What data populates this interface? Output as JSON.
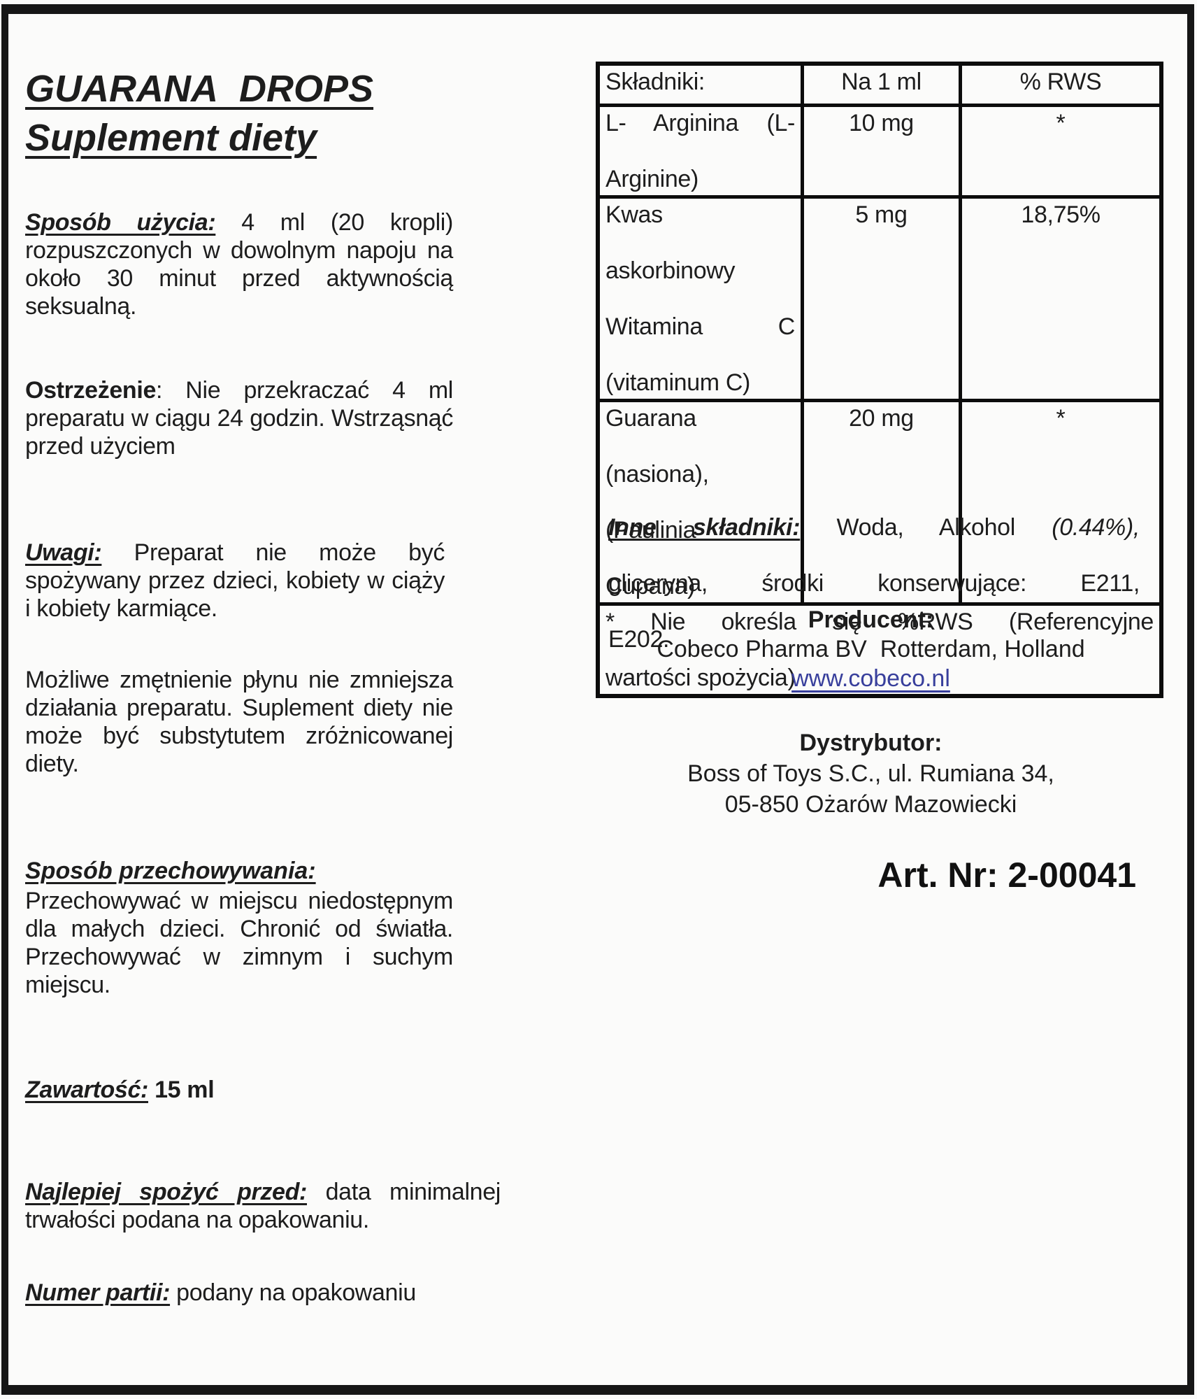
{
  "page": {
    "background": "#fbfbfa",
    "frame_color": "#161616",
    "text_color": "#1d1d1d",
    "link_color": "#383f9c"
  },
  "left": {
    "title_line1": "GUARANA  DROPS",
    "title_line2": "Suplement diety",
    "usage": {
      "lead": "Sposób użycia:",
      "rest": " 4 ml (20 kropli) rozpuszczonych w dowolnym napoju na około 30 minut przed aktywnością seksualną."
    },
    "warning": {
      "lead": "Ostrzeżenie",
      "rest": ": Nie przekraczać 4 ml preparatu w ciągu 24 godzin. Wstrząsnąć przed użyciem"
    },
    "notes": {
      "lead": "Uwagi:",
      "rest": " Preparat nie może być spożywany przez dzieci, kobiety w ciąży i kobiety karmiące."
    },
    "cloudiness": "Możliwe zmętnienie płynu nie zmniejsza działania preparatu. Suplement diety nie może być substytutem zróżnicowanej diety.",
    "storage": {
      "heading": "Sposób przechowywania:",
      "text": "Przechowywać w miejscu niedostępnym dla małych dzieci. Chronić od światła. Przechowywać w zimnym i suchym miejscu."
    },
    "volume": {
      "lead": "Zawartość:",
      "rest": " 15 ml"
    },
    "best_before": {
      "lead": "Najlepiej spożyć przed:",
      "rest": " data minimalnej trwałości podana na opakowaniu."
    },
    "batch": {
      "lead": "Numer partii:",
      "rest": " podany na opakowaniu"
    }
  },
  "table": {
    "col_headers": [
      "Składniki:",
      "Na 1 ml",
      "% RWS"
    ],
    "rows": [
      {
        "ingredient": "L- Arginina (L-Arginine)",
        "ingredient_lines": [
          "L- Arginina (L-",
          "Arginine)"
        ],
        "amount": "10 mg",
        "rws": "*"
      },
      {
        "ingredient": "Kwas askorbinowy Witamina C (vitaminum C)",
        "ingredient_lines": [
          "Kwas",
          "askorbinowy",
          "Witamina C",
          "(vitaminum C)"
        ],
        "amount": "5 mg",
        "rws": "18,75%"
      },
      {
        "ingredient": "Guarana (nasiona), (Paulinia Cupana)",
        "ingredient_lines": [
          "Guarana",
          "(nasiona),",
          "(Paulinia",
          "Cupana)"
        ],
        "amount": "20 mg",
        "rws": "*"
      }
    ],
    "footnote_lines": [
      "* Nie określa się %RWS (Referencyjne",
      "wartości spożycia)"
    ],
    "footnote": "* Nie określa się %RWS (Referencyjne wartości spożycia)"
  },
  "right": {
    "other_ingredients": {
      "lead": "Inne składniki:",
      "line1_rest": " Woda, Alkohol ",
      "line1_pct": "(0.44%),",
      "line2": "gliceryna, środki konserwujące: E211,",
      "line3": "E202."
    },
    "producer_heading": "Producent:",
    "producer_name": "Cobeco Pharma BV  Rotterdam, Holland",
    "producer_url": "www.cobeco.nl",
    "distributor_heading": "Dystrybutor:",
    "distributor_line1": "Boss of Toys S.C., ul. Rumiana 34,",
    "distributor_line2": "05-850 Ożarów Mazowiecki",
    "article_number": "Art. Nr: 2-00041"
  }
}
